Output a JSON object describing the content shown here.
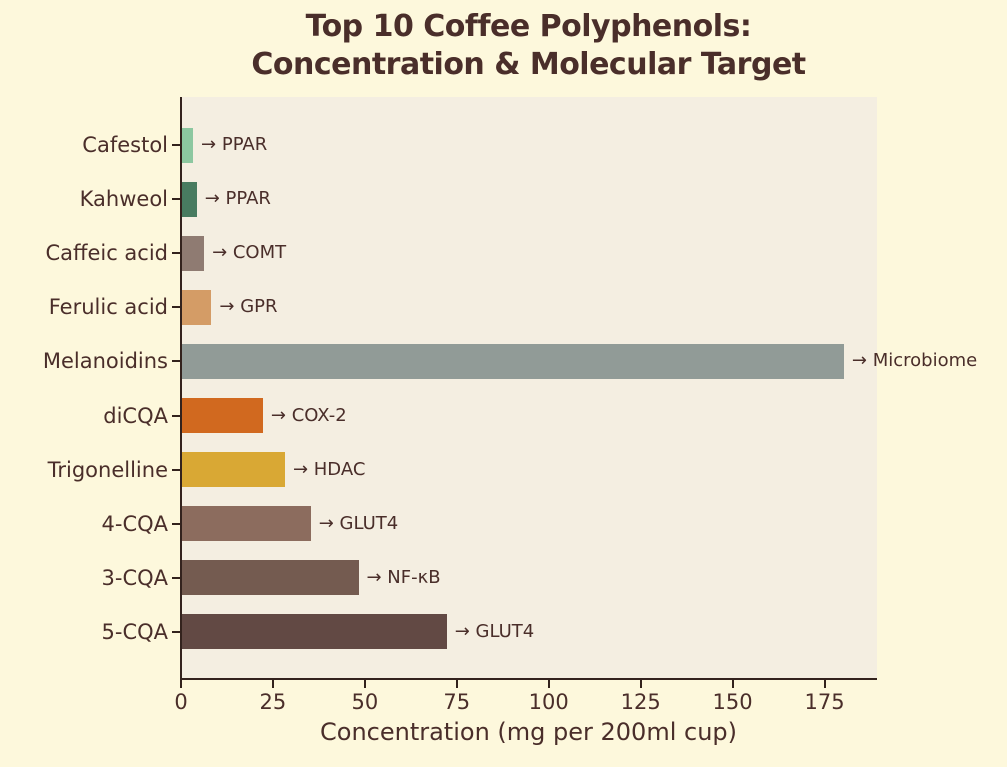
{
  "title": {
    "line1": "Top 10 Coffee Polyphenols:",
    "line2": "Concentration & Molecular Target"
  },
  "chart_data": {
    "type": "bar",
    "orientation": "horizontal",
    "title": "Top 10 Coffee Polyphenols: Concentration & Molecular Target",
    "xlabel": "Concentration (mg per 200ml cup)",
    "ylabel": "",
    "categories": [
      "Cafestol",
      "Kahweol",
      "Caffeic acid",
      "Ferulic acid",
      "Melanoidins",
      "diCQA",
      "Trigonelline",
      "4-CQA",
      "3-CQA",
      "5-CQA"
    ],
    "values": [
      3,
      4,
      6,
      8,
      180,
      22,
      28,
      35,
      48,
      72
    ],
    "annotation_prefix": "→ ",
    "targets": [
      "PPAR",
      "PPAR",
      "COMT",
      "GPR",
      "Microbiome",
      "COX-2",
      "HDAC",
      "GLUT4",
      "NF-κB",
      "GLUT4"
    ],
    "bar_colors": [
      "#8CC7A0",
      "#487B60",
      "#8F7B72",
      "#D49C66",
      "#919B97",
      "#D1691F",
      "#D9A834",
      "#8C6C5E",
      "#745B50",
      "#624944"
    ],
    "x_ticks": [
      0,
      25,
      50,
      75,
      100,
      125,
      150,
      175
    ],
    "xlim": [
      0,
      189
    ],
    "grid": false,
    "legend": false
  },
  "colors": {
    "figure_background": "#FDF8DC",
    "plot_background": "#F4EEE1",
    "text": "#4A2E2A",
    "axis": "#33221D"
  }
}
